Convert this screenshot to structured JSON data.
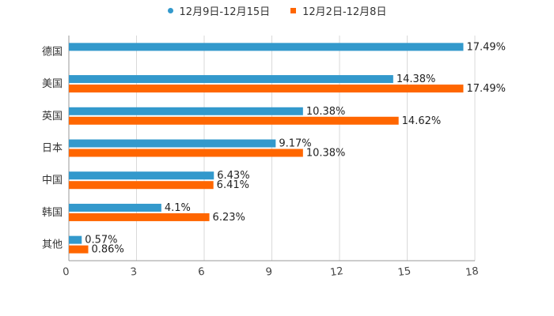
{
  "chart_data": {
    "type": "bar",
    "orientation": "horizontal",
    "categories": [
      "德国",
      "美国",
      "英国",
      "日本",
      "中国",
      "韩国",
      "其他"
    ],
    "series": [
      {
        "name": "12月9日-12月15日",
        "color": "#3399cc",
        "marker": "circle",
        "values": [
          17.49,
          14.38,
          10.38,
          9.17,
          6.43,
          4.1,
          0.57
        ],
        "labels": [
          "17.49%",
          "14.38%",
          "10.38%",
          "9.17%",
          "6.43%",
          "4.1%",
          "0.57%"
        ]
      },
      {
        "name": "12月2日-12月8日",
        "color": "#ff6600",
        "marker": "square",
        "values": [
          null,
          17.49,
          14.62,
          10.38,
          6.41,
          6.23,
          0.86
        ],
        "labels": [
          "",
          "17.49%",
          "14.62%",
          "10.38%",
          "6.41%",
          "6.23%",
          "0.86%"
        ]
      }
    ],
    "x_ticks": [
      0,
      3,
      6,
      9,
      12,
      15,
      18
    ],
    "xlim": [
      0,
      18
    ],
    "grid": true,
    "legend": "top-center"
  }
}
